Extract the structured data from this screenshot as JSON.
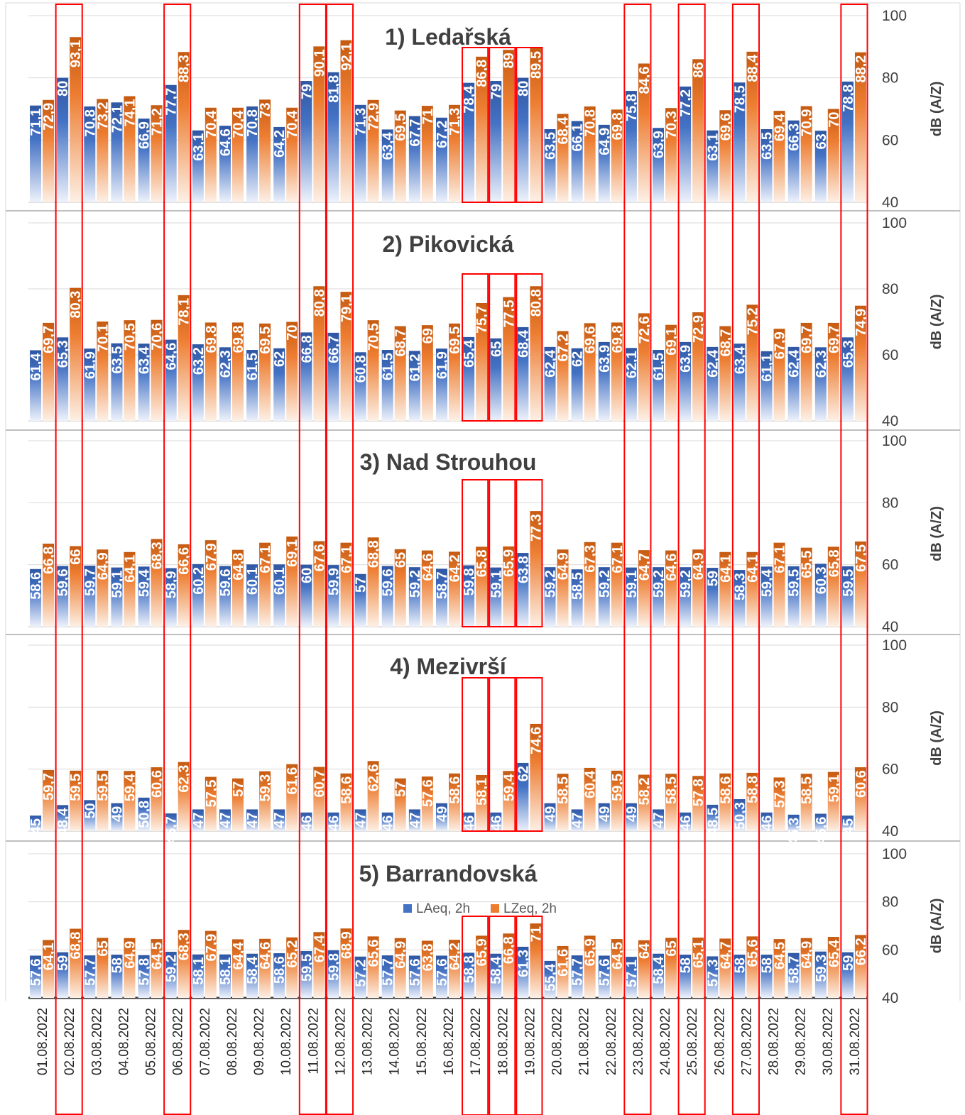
{
  "chart_data": {
    "type": "bar",
    "categories": [
      "01.08.2022",
      "02.08.2022",
      "03.08.2022",
      "04.08.2022",
      "05.08.2022",
      "06.08.2022",
      "07.08.2022",
      "08.08.2022",
      "09.08.2022",
      "10.08.2022",
      "11.08.2022",
      "12.08.2022",
      "13.08.2022",
      "14.08.2022",
      "15.08.2022",
      "16.08.2022",
      "17.08.2022",
      "18.08.2022",
      "19.08.2022",
      "20.08.2022",
      "21.08.2022",
      "22.08.2022",
      "23.08.2022",
      "24.08.2022",
      "25.08.2022",
      "26.08.2022",
      "27.08.2022",
      "28.08.2022",
      "29.08.2022",
      "30.08.2022",
      "31.08.2022"
    ],
    "ylabel": "dB (A/Z)",
    "ylim": [
      40,
      100
    ],
    "yticks": [
      "40",
      "60",
      "80",
      "100"
    ],
    "legend": {
      "position": "top-center",
      "entries": [
        "LAeq, 2h",
        "LZeq, 2h"
      ]
    },
    "colors": {
      "laeq": "#4472c4",
      "lzeq": "#ed7d31",
      "highlight": "#ff0000"
    },
    "highlight_day_columns": [
      "02.08.2022",
      "06.08.2022",
      "11.08.2022",
      "12.08.2022",
      "23.08.2022",
      "25.08.2022",
      "27.08.2022",
      "31.08.2022"
    ],
    "highlight_boxes": [
      "17.08.2022",
      "18.08.2022",
      "19.08.2022"
    ],
    "panels": [
      {
        "title": "1) Ledařská",
        "laeq": [
          71.1,
          80,
          70.8,
          72.1,
          66.9,
          77.7,
          63.1,
          64.6,
          70.8,
          64.2,
          79,
          81.8,
          71.3,
          63.4,
          67.7,
          67.2,
          78.4,
          79,
          80,
          63.5,
          66.1,
          64.9,
          75.8,
          63.9,
          77.2,
          63.1,
          78.5,
          63.5,
          66.3,
          63,
          78.8
        ],
        "laeq_labels": [
          "71,1",
          "80",
          "70,8",
          "72,1",
          "66,9",
          "77,7",
          "63,1",
          "64,6",
          "70,8",
          "64,2",
          "79",
          "81,8",
          "71,3",
          "63,4",
          "67,7",
          "67,2",
          "78,4",
          "79",
          "80",
          "63,5",
          "66,1",
          "64,9",
          "75,8",
          "63,9",
          "77,2",
          "63,1",
          "78,5",
          "63,5",
          "66,3",
          "63",
          "78,8"
        ],
        "lzeq": [
          72.9,
          93.1,
          73.2,
          74.1,
          71.2,
          88.3,
          70.4,
          70.4,
          73,
          70.4,
          90.1,
          92.1,
          72.9,
          69.5,
          71,
          71.3,
          86.8,
          89,
          89.5,
          68.4,
          70.8,
          69.8,
          84.6,
          70.3,
          86,
          69.6,
          88.4,
          69.4,
          70.9,
          70,
          88.2
        ],
        "lzeq_labels": [
          "72,9",
          "93,1",
          "73,2",
          "74,1",
          "71,2",
          "88,3",
          "70,4",
          "70,4",
          "73",
          "70,4",
          "90,1",
          "92,1",
          "72,9",
          "69,5",
          "71",
          "71,3",
          "86,8",
          "89",
          "89,5",
          "68,4",
          "70,8",
          "69,8",
          "84,6",
          "70,3",
          "86",
          "69,6",
          "88,4",
          "69,4",
          "70,9",
          "70",
          "88,2"
        ]
      },
      {
        "title": "2) Pikovická",
        "laeq": [
          61.4,
          65.3,
          61.9,
          63.5,
          63.4,
          64.6,
          63.2,
          62.3,
          61.5,
          62,
          66.8,
          66.7,
          60.8,
          61.5,
          61.2,
          61.9,
          65.4,
          65,
          68.4,
          62.4,
          62,
          63.9,
          62.1,
          61.5,
          63.9,
          62.4,
          63.4,
          61.1,
          62.4,
          62.3,
          65.3
        ],
        "laeq_labels": [
          "61,4",
          "65,3",
          "61,9",
          "63,5",
          "63,4",
          "64,6",
          "63,2",
          "62,3",
          "61,5",
          "62",
          "66,8",
          "66,7",
          "60,8",
          "61,5",
          "61,2",
          "61,9",
          "65,4",
          "65",
          "68,4",
          "62,4",
          "62",
          "63,9",
          "62,1",
          "61,5",
          "63,9",
          "62,4",
          "63,4",
          "61,1",
          "62,4",
          "62,3",
          "65,3"
        ],
        "lzeq": [
          69.7,
          80.3,
          70.1,
          70.5,
          70.6,
          78.1,
          69.8,
          69.8,
          69.5,
          70,
          80.8,
          79.1,
          70.5,
          68.7,
          69,
          69.5,
          75.7,
          77.5,
          80.8,
          67.2,
          69.6,
          69.8,
          72.6,
          69.1,
          72.9,
          68.7,
          75.2,
          67.9,
          69.7,
          69.7,
          74.9
        ],
        "lzeq_labels": [
          "69,7",
          "80,3",
          "70,1",
          "70,5",
          "70,6",
          "78,1",
          "69,8",
          "69,8",
          "69,5",
          "70",
          "80,8",
          "79,1",
          "70,5",
          "68,7",
          "69",
          "69,5",
          "75,7",
          "77,5",
          "80,8",
          "67,2",
          "69,6",
          "69,8",
          "72,6",
          "69,1",
          "72,9",
          "68,7",
          "75,2",
          "67,9",
          "69,7",
          "69,7",
          "74,9"
        ]
      },
      {
        "title": "3) Nad Strouhou",
        "laeq": [
          58.6,
          59.6,
          59.7,
          59.1,
          59.4,
          58.9,
          60.2,
          59.6,
          60.1,
          60.1,
          60,
          59.9,
          57,
          59.6,
          59.2,
          58.7,
          59.8,
          59.1,
          63.8,
          59.2,
          58.5,
          59.2,
          59.1,
          59.2,
          59.2,
          59,
          58.3,
          59.4,
          59.5,
          60.3,
          59.5
        ],
        "laeq_labels": [
          "58,6",
          "59,6",
          "59,7",
          "59,1",
          "59,4",
          "58,9",
          "60,2",
          "59,6",
          "60,1",
          "60,1",
          "60",
          "59,9",
          "57",
          "59,6",
          "59,2",
          "58,7",
          "59,8",
          "59,1",
          "63,8",
          "59,2",
          "58,5",
          "59,2",
          "59,1",
          "59,2",
          "59,2",
          "59",
          "58,3",
          "59,4",
          "59,5",
          "60,3",
          "59,5"
        ],
        "lzeq": [
          66.8,
          66,
          64.9,
          64.1,
          68.3,
          66.6,
          67.9,
          64.8,
          67.1,
          69.1,
          67.6,
          67.1,
          68.8,
          65,
          64.6,
          64.2,
          65.8,
          65.9,
          77.3,
          64.9,
          67.3,
          67.1,
          64.7,
          64.6,
          64.9,
          64.1,
          64.1,
          67.1,
          65.5,
          65.8,
          67.5
        ],
        "lzeq_labels": [
          "66,8",
          "66",
          "64,9",
          "64,1",
          "68,3",
          "66,6",
          "67,9",
          "64,8",
          "67,1",
          "69,1",
          "67,6",
          "67,1",
          "68,8",
          "65",
          "64,6",
          "64,2",
          "65,8",
          "65,9",
          "77,3",
          "64,9",
          "67,3",
          "67,1",
          "64,7",
          "64,6",
          "64,9",
          "64,1",
          "64,1",
          "67,1",
          "65,5",
          "65,8",
          "67,5"
        ]
      },
      {
        "title": "4) Mezivrší",
        "laeq": [
          45,
          48.4,
          50,
          49,
          50.8,
          45.7,
          47,
          47,
          47,
          47,
          46,
          46,
          47,
          46,
          47,
          49,
          46,
          46,
          62,
          49,
          47,
          49,
          49,
          47,
          46,
          48.5,
          50.3,
          46,
          45.3,
          45.6,
          45
        ],
        "laeq_labels": [
          "45",
          "48,4",
          "50",
          "49",
          "50,8",
          "45,7",
          "47",
          "47",
          "47",
          "47",
          "46",
          "46",
          "47",
          "46",
          "47",
          "49",
          "46",
          "46",
          "62",
          "49",
          "47",
          "49",
          "49",
          "47",
          "46",
          "48,5",
          "50,3",
          "46",
          "45,3",
          "45,6",
          "45"
        ],
        "lzeq": [
          59.7,
          59.5,
          59.5,
          59.4,
          60.6,
          62.3,
          57.5,
          57,
          59.3,
          61.6,
          60.7,
          58.6,
          62.6,
          57,
          57.6,
          58.6,
          58.1,
          59.4,
          74.6,
          58.5,
          60.4,
          59.5,
          58.2,
          58.5,
          57.8,
          58.6,
          58.8,
          57.3,
          58.5,
          59.1,
          60.6
        ],
        "lzeq_labels": [
          "59,7",
          "59,5",
          "59,5",
          "59,4",
          "60,6",
          "62,3",
          "57,5",
          "57",
          "59,3",
          "61,6",
          "60,7",
          "58,6",
          "62,6",
          "57",
          "57,6",
          "58,6",
          "58,1",
          "59,4",
          "74,6",
          "58,5",
          "60,4",
          "59,5",
          "58,2",
          "58,5",
          "57,8",
          "58,6",
          "58,8",
          "57,3",
          "58,5",
          "59,1",
          "60,6"
        ]
      },
      {
        "title": "5) Barrandovská",
        "laeq": [
          57.6,
          59,
          57.7,
          58,
          57.8,
          59.2,
          58.1,
          58.1,
          58.4,
          58.6,
          59.5,
          59.8,
          57.2,
          57.7,
          57.6,
          57.6,
          58.8,
          58.4,
          61.3,
          55.4,
          57.7,
          57.6,
          57.1,
          58.4,
          58,
          57.3,
          58,
          58,
          58.7,
          59.3,
          59
        ],
        "laeq_labels": [
          "57,6",
          "59",
          "57,7",
          "58",
          "57,8",
          "59,2",
          "58,1",
          "58,1",
          "58,4",
          "58,6",
          "59,5",
          "59,8",
          "57,2",
          "57,7",
          "57,6",
          "57,6",
          "58,8",
          "58,4",
          "61,3",
          "55,4",
          "57,7",
          "57,6",
          "57,1",
          "58,4",
          "58",
          "57,3",
          "58",
          "58",
          "58,7",
          "59,3",
          "59"
        ],
        "lzeq": [
          64.1,
          68.8,
          65,
          64.9,
          64.5,
          68.3,
          67.9,
          64.4,
          64.6,
          65.2,
          67.4,
          68.9,
          65.6,
          64.9,
          63.8,
          64.2,
          65.9,
          66.8,
          71,
          61.6,
          65.9,
          64.5,
          64,
          65,
          65.1,
          64.7,
          65.6,
          64.5,
          64.9,
          65.4,
          66.2
        ],
        "lzeq_labels": [
          "64,1",
          "68,8",
          "65",
          "64,9",
          "64,5",
          "68,3",
          "67,9",
          "64,4",
          "64,6",
          "65,2",
          "67,4",
          "68,9",
          "65,6",
          "64,9",
          "63,8",
          "64,2",
          "65,9",
          "66,8",
          "71",
          "61,6",
          "65,9",
          "64,5",
          "64",
          "65",
          "65,1",
          "64,7",
          "65,6",
          "64,5",
          "64,9",
          "65,4",
          "66,2"
        ]
      }
    ]
  }
}
